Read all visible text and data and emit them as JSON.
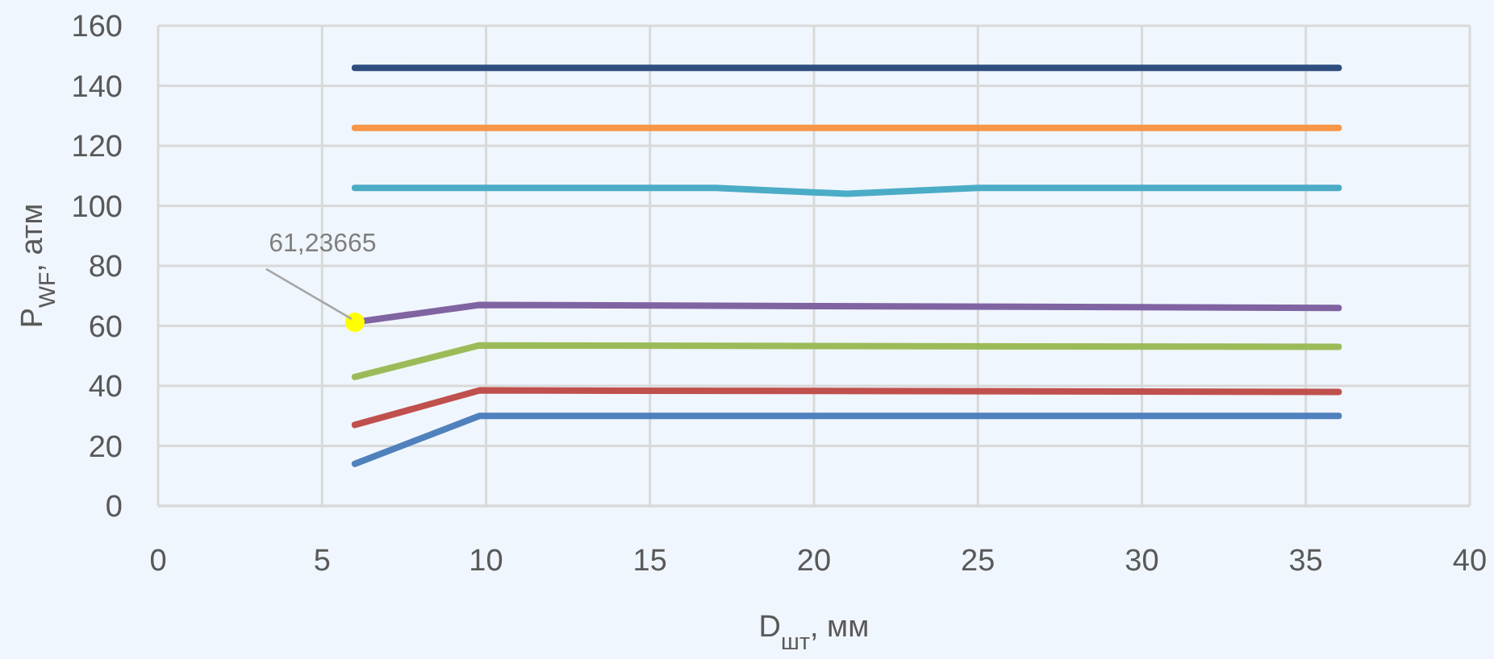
{
  "chart_data": {
    "type": "line",
    "xlabel": "D$_{шт}$, мм",
    "ylabel": "P$_{WF}$, атм",
    "xlim": [
      0,
      40
    ],
    "xticks": [
      0,
      5,
      10,
      15,
      20,
      25,
      30,
      35,
      40
    ],
    "ylim": [
      0,
      160
    ],
    "yticks": [
      0,
      20,
      40,
      60,
      80,
      100,
      120,
      140,
      160
    ],
    "grid": true,
    "series": [
      {
        "color": "#2e4e7e",
        "x": [
          6,
          9.8,
          36
        ],
        "values": [
          146,
          146,
          146
        ]
      },
      {
        "color": "#f79646",
        "x": [
          6,
          9.8,
          36
        ],
        "values": [
          126,
          126,
          126
        ]
      },
      {
        "color": "#4bacc6",
        "x": [
          6,
          9.8,
          17,
          21,
          25,
          36
        ],
        "values": [
          106,
          106,
          106,
          104,
          106,
          106
        ]
      },
      {
        "color": "#8064a2",
        "x": [
          6,
          9.8,
          36
        ],
        "values": [
          61.23665,
          67,
          66
        ]
      },
      {
        "color": "#9bbb59",
        "x": [
          6,
          9.8,
          36
        ],
        "values": [
          43,
          53.5,
          53
        ]
      },
      {
        "color": "#c0504d",
        "x": [
          6,
          9.8,
          36
        ],
        "values": [
          27,
          38.5,
          38
        ]
      },
      {
        "color": "#4f81bd",
        "x": [
          6,
          9.8,
          36
        ],
        "values": [
          14,
          30,
          30
        ]
      }
    ],
    "annotations": [
      {
        "text": "61,23665",
        "x": 6,
        "y": 61.23665
      }
    ]
  }
}
